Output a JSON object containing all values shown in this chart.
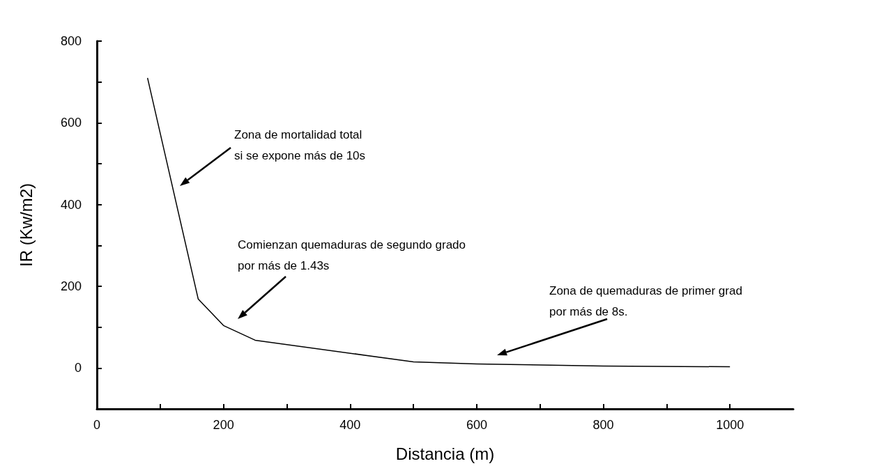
{
  "chart_data": {
    "type": "line",
    "xlabel": "Distancia (m)",
    "ylabel": "IR (Kw/m2)",
    "x": [
      80,
      160,
      200,
      250,
      500,
      600,
      800,
      1000
    ],
    "values": [
      710,
      169,
      104,
      68,
      15,
      10,
      5,
      3
    ],
    "color": "#000000",
    "marker": "none",
    "line_style": "solid",
    "xlim": [
      0,
      1100
    ],
    "xticks": [
      0,
      {
        "value": 100,
        "label": null
      },
      200,
      {
        "value": 300,
        "label": null
      },
      400,
      {
        "value": 500,
        "label": null
      },
      600,
      {
        "value": 700,
        "label": null
      },
      800,
      {
        "value": 900,
        "label": null
      },
      1000
    ],
    "ylim": [
      -100,
      800
    ],
    "yticks": [
      0,
      {
        "value": 100,
        "label": null
      },
      200,
      {
        "value": 300,
        "label": null
      },
      400,
      {
        "value": 500,
        "label": null
      },
      600,
      {
        "value": 700,
        "label": null
      },
      800
    ],
    "annotations": [
      "Zona de mortalidad total\nsi se expone más de 10s",
      "Comienzan quemaduras de segundo grado\npor más de 1.43s",
      "Zona de quemaduras de primer grad\npor más de 8s."
    ]
  }
}
